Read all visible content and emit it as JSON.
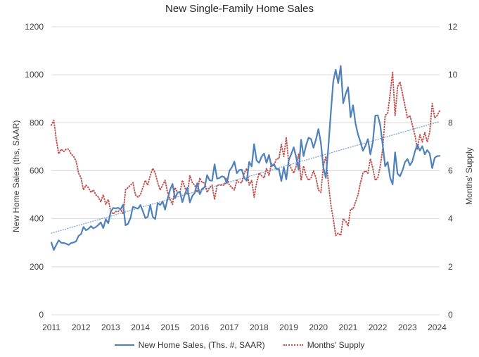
{
  "title": "New Single-Family Home Sales",
  "chart_data": {
    "type": "line",
    "x_start": "2011-01",
    "x_end": "2024-02",
    "frequency": "monthly",
    "x_tick_labels": [
      "2011",
      "2012",
      "2013",
      "2014",
      "2015",
      "2016",
      "2017",
      "2018",
      "2019",
      "2020",
      "2021",
      "2022",
      "2023",
      "2024"
    ],
    "left_axis": {
      "label": "New Home Sales (ths, SAAR)",
      "ticks": [
        0,
        200,
        400,
        600,
        800,
        1000,
        1200
      ],
      "range": [
        0,
        1200
      ]
    },
    "right_axis": {
      "label": "Months' Supply",
      "ticks": [
        0,
        2,
        4,
        6,
        8,
        10,
        12
      ],
      "range": [
        0,
        12
      ]
    },
    "grid": "horizontal",
    "colors": {
      "sales": "#4f81bd",
      "supply": "#c0504d",
      "trend": "#7da4d2",
      "gridline": "#d9d9d9",
      "tick_text": "#3f3f3f",
      "title_text": "#262626"
    },
    "legend": {
      "position": "bottom",
      "entries": [
        "New Home Sales, (Ths. #, SAAR)",
        "Months' Supply"
      ]
    },
    "trendline": {
      "applies_to": "New Home Sales",
      "style": "dotted",
      "start_value": 340,
      "end_value": 805,
      "axis": "left"
    },
    "series": [
      {
        "name": "New Home Sales, (Ths. #, SAAR)",
        "axis": "left",
        "style": "solid",
        "color": "#4f81bd",
        "values": [
          301,
          270,
          291,
          310,
          300,
          299,
          296,
          291,
          299,
          301,
          306,
          329,
          336,
          366,
          352,
          358,
          369,
          360,
          366,
          374,
          385,
          361,
          398,
          381,
          429,
          445,
          443,
          446,
          439,
          459,
          373,
          379,
          403,
          450,
          446,
          442,
          457,
          432,
          403,
          408,
          457,
          408,
          399,
          466,
          457,
          472,
          438,
          482,
          521,
          545,
          485,
          508,
          513,
          469,
          503,
          529,
          468,
          495,
          508,
          548,
          502,
          525,
          531,
          582,
          560,
          558,
          627,
          567,
          570,
          577,
          573,
          548,
          599,
          615,
          638,
          590,
          603,
          605,
          571,
          558,
          637,
          618,
          711,
          643,
          633,
          659,
          672,
          633,
          666,
          618,
          628,
          607,
          607,
          557,
          615,
          564,
          644,
          669,
          698,
          656,
          604,
          729,
          661,
          706,
          738,
          732,
          696,
          730,
          774,
          716,
          612,
          570,
          698,
          840,
          972,
          1021,
          965,
          1037,
          881,
          919,
          948,
          823,
          873,
          796,
          751,
          720,
          683,
          704,
          732,
          668,
          721,
          830,
          831,
          790,
          707,
          619,
          636,
          571,
          543,
          677,
          588,
          577,
          602,
          636,
          649,
          623,
          640,
          679,
          710,
          684,
          702,
          669,
          686,
          672,
          611,
          654,
          661,
          662
        ]
      },
      {
        "name": "Months' Supply",
        "axis": "right",
        "style": "dotted",
        "color": "#c0504d",
        "values": [
          7.9,
          8.1,
          7.3,
          6.7,
          6.9,
          6.8,
          6.9,
          6.9,
          6.7,
          6.6,
          6.4,
          5.9,
          5.7,
          5.2,
          5.4,
          5.3,
          5.1,
          5.2,
          5.0,
          4.9,
          4.7,
          5.0,
          4.6,
          4.8,
          4.3,
          4.2,
          4.3,
          4.3,
          4.4,
          4.2,
          5.2,
          5.3,
          5.4,
          5.5,
          5.0,
          4.9,
          5.0,
          5.3,
          5.6,
          5.4,
          5.8,
          6.1,
          5.9,
          5.5,
          5.2,
          5.4,
          5.6,
          5.1,
          4.8,
          4.6,
          5.3,
          5.1,
          5.1,
          5.6,
          5.3,
          5.0,
          5.8,
          5.5,
          5.4,
          5.1,
          5.7,
          5.5,
          5.5,
          5.1,
          5.3,
          5.4,
          4.8,
          5.4,
          5.4,
          5.4,
          5.4,
          5.7,
          5.4,
          5.3,
          5.2,
          5.6,
          5.5,
          5.5,
          5.9,
          6.1,
          5.4,
          5.6,
          4.9,
          5.5,
          5.9,
          5.8,
          5.7,
          6.1,
          5.8,
          6.3,
          6.2,
          6.5,
          6.5,
          7.1,
          6.6,
          7.4,
          6.3,
          6.1,
          5.9,
          6.2,
          6.7,
          5.6,
          6.2,
          5.8,
          5.6,
          5.7,
          6.0,
          5.7,
          5.2,
          5.1,
          6.2,
          6.6,
          5.5,
          4.6,
          4.0,
          3.3,
          3.4,
          3.3,
          4.0,
          3.9,
          3.7,
          4.4,
          4.4,
          4.7,
          5.0,
          5.5,
          5.9,
          6.0,
          5.9,
          6.5,
          6.1,
          5.6,
          5.7,
          6.2,
          6.9,
          8.3,
          8.4,
          9.2,
          10.1,
          8.3,
          9.5,
          9.7,
          9.2,
          8.7,
          8.2,
          8.3,
          7.9,
          7.5,
          6.9,
          7.5,
          7.2,
          7.6,
          7.2,
          7.6,
          8.8,
          8.2,
          8.3,
          8.5
        ]
      }
    ]
  }
}
